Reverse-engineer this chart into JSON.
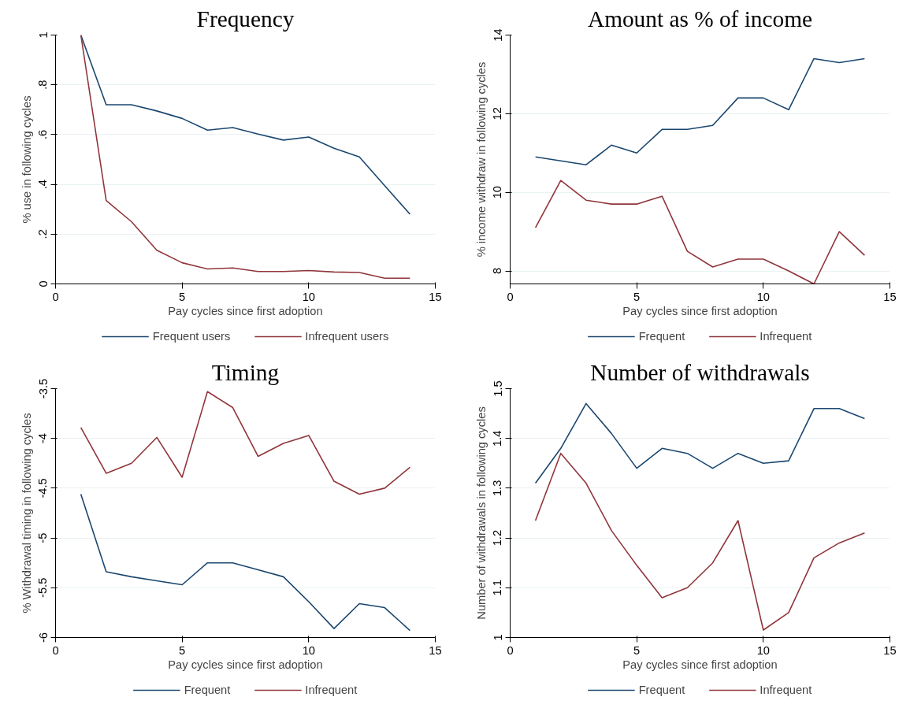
{
  "chart_data": [
    {
      "type": "line",
      "title": "Frequency",
      "xlabel": "Pay cycles since first adoption",
      "ylabel": "% use in following cycles",
      "x": [
        1,
        2,
        3,
        4,
        5,
        6,
        7,
        8,
        9,
        10,
        11,
        12,
        13,
        14
      ],
      "xlim": [
        0,
        15
      ],
      "xticks": [
        0,
        5,
        10,
        15
      ],
      "ylim": [
        0,
        1
      ],
      "yticks": [
        0,
        {
          "value": 0.2,
          "label": ".2"
        },
        {
          "value": 0.4,
          "label": ".4"
        },
        {
          "value": 0.6,
          "label": ".6"
        },
        {
          "value": 0.8,
          "label": ".8"
        },
        1
      ],
      "grid": "y",
      "legend": "bottom",
      "marker": "none",
      "line_style": "solid",
      "series": [
        {
          "name": "Frequent users",
          "color": "#1a476f",
          "values": [
            1,
            0.72,
            0.72,
            0.695,
            0.665,
            0.618,
            0.628,
            0.602,
            0.578,
            0.59,
            0.545,
            0.51,
            0.395,
            0.28
          ]
        },
        {
          "name": "Infrequent users",
          "color": "#90353b",
          "values": [
            1,
            0.335,
            0.25,
            0.135,
            0.085,
            0.06,
            0.064,
            0.05,
            0.05,
            0.054,
            0.048,
            0.046,
            0.023,
            0.023
          ]
        }
      ]
    },
    {
      "type": "line",
      "title": "Amount as % of income",
      "xlabel": "Pay cycles since first adoption",
      "ylabel": "% income withdraw in following cycles",
      "x": [
        1,
        2,
        3,
        4,
        5,
        6,
        7,
        8,
        9,
        10,
        11,
        12,
        13,
        14
      ],
      "xlim": [
        0,
        15
      ],
      "xticks": [
        0,
        5,
        10,
        15
      ],
      "ylim": [
        7.67,
        14
      ],
      "yticks": [
        8,
        10,
        12,
        14
      ],
      "grid": "y",
      "legend": "bottom",
      "marker": "none",
      "line_style": "solid",
      "series": [
        {
          "name": "Frequent",
          "color": "#1a476f",
          "values": [
            10.9,
            10.8,
            10.7,
            11.2,
            11.0,
            11.6,
            11.6,
            11.7,
            12.4,
            12.4,
            12.1,
            13.4,
            13.3,
            13.4
          ]
        },
        {
          "name": "Infrequent",
          "color": "#90353b",
          "values": [
            9.1,
            10.3,
            9.8,
            9.7,
            9.7,
            9.9,
            8.5,
            8.1,
            8.3,
            8.3,
            8.0,
            7.67,
            9.0,
            8.4
          ]
        }
      ]
    },
    {
      "type": "line",
      "title": "Timing",
      "xlabel": "Pay cycles since first adoption",
      "ylabel": "% Withdrawal timing in following cycles",
      "x": [
        1,
        2,
        3,
        4,
        5,
        6,
        7,
        8,
        9,
        10,
        11,
        12,
        13,
        14
      ],
      "xlim": [
        0,
        15
      ],
      "xticks": [
        0,
        5,
        10,
        15
      ],
      "ylim": [
        -6,
        -3.5
      ],
      "yticks": [
        -6,
        -5.5,
        -5,
        -4.5,
        -4,
        -3.5
      ],
      "grid": "y",
      "legend": "bottom",
      "marker": "none",
      "line_style": "solid",
      "series": [
        {
          "name": "Frequent",
          "color": "#1a476f",
          "values": [
            -4.56,
            -5.34,
            -5.39,
            -5.43,
            -5.47,
            -5.25,
            -5.25,
            -5.32,
            -5.39,
            -5.64,
            -5.91,
            -5.66,
            -5.7,
            -5.93
          ]
        },
        {
          "name": "Infrequent",
          "color": "#90353b",
          "values": [
            -3.89,
            -4.35,
            -4.25,
            -3.99,
            -4.39,
            -3.53,
            -3.69,
            -4.18,
            -4.05,
            -3.97,
            -4.43,
            -4.56,
            -4.5,
            -4.29
          ]
        }
      ]
    },
    {
      "type": "line",
      "title": "Number of withdrawals",
      "xlabel": "Pay cycles since first adoption",
      "ylabel": "Number of withdrawals in following cycles",
      "x": [
        1,
        2,
        3,
        4,
        5,
        6,
        7,
        8,
        9,
        10,
        11,
        12,
        13,
        14
      ],
      "xlim": [
        0,
        15
      ],
      "xticks": [
        0,
        5,
        10,
        15
      ],
      "ylim": [
        1,
        1.5
      ],
      "yticks": [
        1,
        1.1,
        1.2,
        1.3,
        1.4,
        1.5
      ],
      "grid": "y",
      "legend": "bottom",
      "marker": "none",
      "line_style": "solid",
      "series": [
        {
          "name": "Frequent",
          "color": "#1a476f",
          "values": [
            1.31,
            1.38,
            1.47,
            1.41,
            1.34,
            1.38,
            1.37,
            1.34,
            1.37,
            1.35,
            1.355,
            1.46,
            1.46,
            1.44
          ]
        },
        {
          "name": "Infrequent",
          "color": "#90353b",
          "values": [
            1.235,
            1.37,
            1.31,
            1.215,
            1.145,
            1.08,
            1.1,
            1.15,
            1.235,
            1.015,
            1.05,
            1.16,
            1.19,
            1.21
          ]
        }
      ]
    }
  ]
}
